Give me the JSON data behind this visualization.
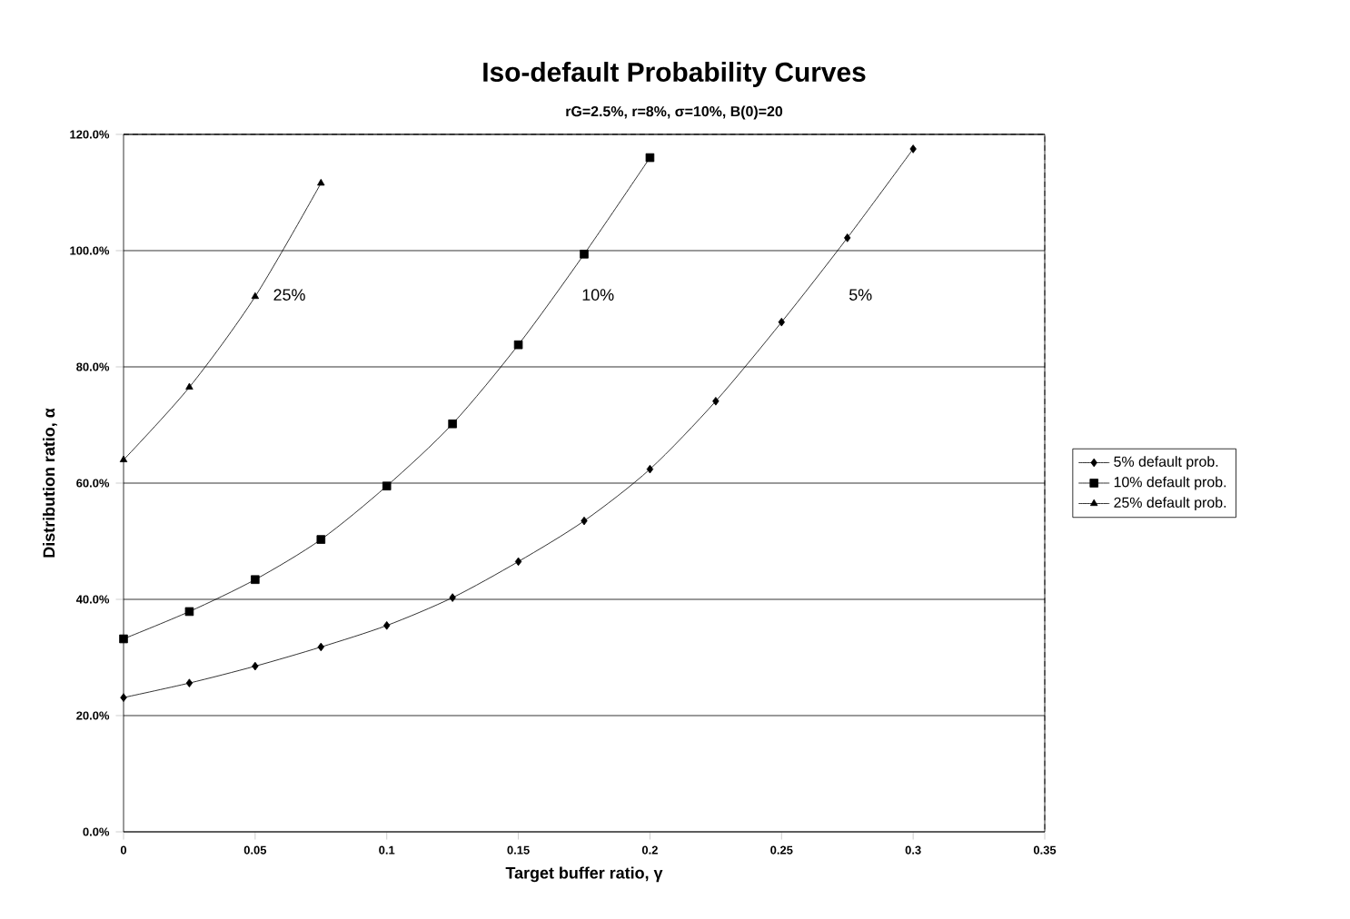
{
  "chart_data": {
    "type": "line",
    "title": "Iso-default Probability Curves",
    "subtitle": "rG=2.5%, r=8%, σ=10%, B(0)=20",
    "xlabel": "Target buffer ratio, γ",
    "ylabel": "Distribution ratio, α",
    "xlim": [
      0,
      0.35
    ],
    "xticks": [
      0,
      0.05,
      0.1,
      0.15,
      0.2,
      0.25,
      0.3,
      0.35
    ],
    "ylim": [
      0,
      120
    ],
    "yticks": [
      {
        "value": 0,
        "label": "0.0%"
      },
      {
        "value": 20,
        "label": "20.0%"
      },
      {
        "value": 40,
        "label": "40.0%"
      },
      {
        "value": 60,
        "label": "60.0%"
      },
      {
        "value": 80,
        "label": "80.0%"
      },
      {
        "value": 100,
        "label": "100.0%"
      },
      {
        "value": 120,
        "label": "120.0%"
      }
    ],
    "grid": "y",
    "legend": "right",
    "annotations": [
      "25%",
      "10%",
      "5%"
    ],
    "series": [
      {
        "name": "5% default prob.",
        "color": "#000000",
        "marker": "diamond",
        "x": [
          0,
          0.025,
          0.05,
          0.075,
          0.1,
          0.125,
          0.15,
          0.175,
          0.2,
          0.225,
          0.25,
          0.275,
          0.3
        ],
        "values": [
          23.1,
          25.6,
          28.5,
          31.8,
          35.5,
          40.3,
          46.5,
          53.5,
          62.4,
          74.1,
          87.7,
          102.2,
          117.5
        ]
      },
      {
        "name": "10% default prob.",
        "color": "#000000",
        "marker": "square",
        "x": [
          0,
          0.025,
          0.05,
          0.075,
          0.1,
          0.125,
          0.15,
          0.175,
          0.2
        ],
        "values": [
          33.2,
          37.9,
          43.4,
          50.3,
          59.5,
          70.2,
          83.8,
          99.4,
          116.0
        ]
      },
      {
        "name": "25% default prob.",
        "color": "#000000",
        "marker": "triangle",
        "x": [
          0,
          0.025,
          0.05,
          0.075
        ],
        "values": [
          64.0,
          76.5,
          92.1,
          111.6
        ]
      }
    ]
  }
}
